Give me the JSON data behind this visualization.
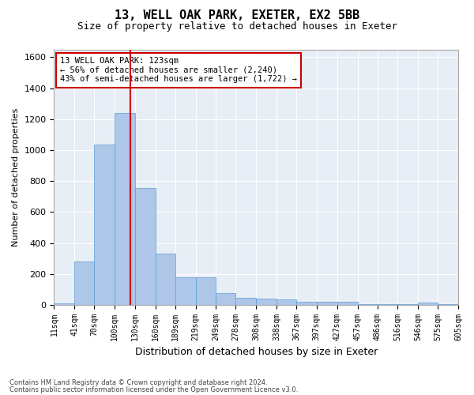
{
  "title": "13, WELL OAK PARK, EXETER, EX2 5BB",
  "subtitle": "Size of property relative to detached houses in Exeter",
  "xlabel": "Distribution of detached houses by size in Exeter",
  "ylabel": "Number of detached properties",
  "footnote1": "Contains HM Land Registry data © Crown copyright and database right 2024.",
  "footnote2": "Contains public sector information licensed under the Open Government Licence v3.0.",
  "annotation_line1": "13 WELL OAK PARK: 123sqm",
  "annotation_line2": "← 56% of detached houses are smaller (2,240)",
  "annotation_line3": "43% of semi-detached houses are larger (1,722) →",
  "property_size": 123,
  "bar_color": "#aec6e8",
  "bar_edge_color": "#5a9ed6",
  "line_color": "#cc0000",
  "plot_bg_color": "#e8eef5",
  "ylim": [
    0,
    1650
  ],
  "yticks": [
    0,
    200,
    400,
    600,
    800,
    1000,
    1200,
    1400,
    1600
  ],
  "bin_edges": [
    11,
    41,
    70,
    100,
    130,
    160,
    189,
    219,
    249,
    278,
    308,
    338,
    367,
    397,
    427,
    457,
    486,
    516,
    546,
    575,
    605
  ],
  "bin_labels": [
    "11sqm",
    "41sqm",
    "70sqm",
    "100sqm",
    "130sqm",
    "160sqm",
    "189sqm",
    "219sqm",
    "249sqm",
    "278sqm",
    "308sqm",
    "338sqm",
    "367sqm",
    "397sqm",
    "427sqm",
    "457sqm",
    "486sqm",
    "516sqm",
    "546sqm",
    "575sqm",
    "605sqm"
  ],
  "bar_heights": [
    10,
    280,
    1035,
    1240,
    755,
    330,
    180,
    180,
    80,
    45,
    40,
    35,
    20,
    20,
    20,
    5,
    5,
    5,
    15,
    5
  ]
}
